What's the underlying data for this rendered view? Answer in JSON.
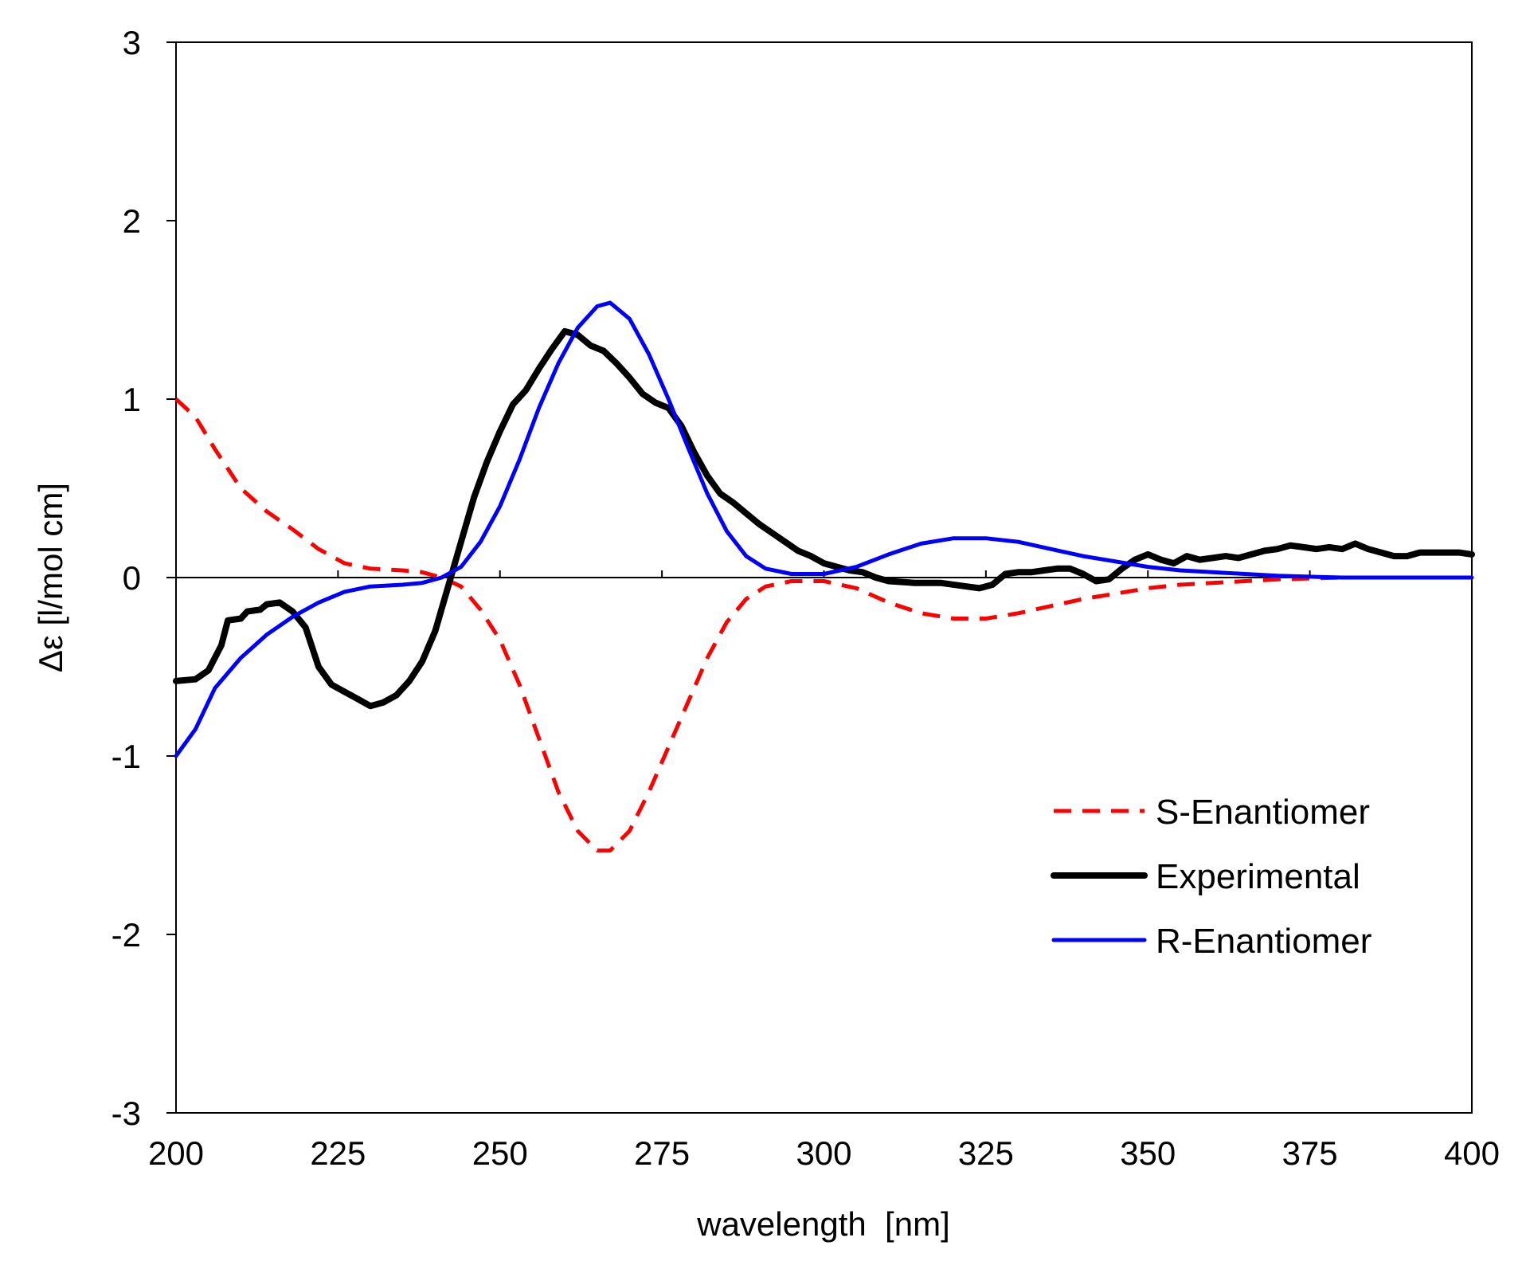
{
  "chart_data": {
    "type": "line",
    "title": "",
    "xlabel": "wavelength  [nm]",
    "ylabel": "Δε [l/mol cm]",
    "xlim": [
      200,
      400
    ],
    "ylim": [
      -3,
      3
    ],
    "x_ticks": [
      200,
      225,
      250,
      275,
      300,
      325,
      350,
      375,
      400
    ],
    "y_ticks": [
      -3,
      -2,
      -1,
      0,
      1,
      2,
      3
    ],
    "legend_position": "lower-right",
    "series": [
      {
        "name": "S-Enantiomer",
        "color": "#ff0000",
        "style": "dashed",
        "points": [
          [
            200,
            1.0
          ],
          [
            203,
            0.9
          ],
          [
            206,
            0.72
          ],
          [
            210,
            0.5
          ],
          [
            214,
            0.37
          ],
          [
            218,
            0.27
          ],
          [
            222,
            0.16
          ],
          [
            226,
            0.08
          ],
          [
            230,
            0.05
          ],
          [
            235,
            0.04
          ],
          [
            238,
            0.03
          ],
          [
            241,
            0.0
          ],
          [
            244,
            -0.05
          ],
          [
            247,
            -0.18
          ],
          [
            250,
            -0.35
          ],
          [
            253,
            -0.6
          ],
          [
            256,
            -0.9
          ],
          [
            259,
            -1.2
          ],
          [
            262,
            -1.42
          ],
          [
            265,
            -1.53
          ],
          [
            267,
            -1.53
          ],
          [
            270,
            -1.42
          ],
          [
            273,
            -1.2
          ],
          [
            276,
            -0.95
          ],
          [
            279,
            -0.7
          ],
          [
            282,
            -0.45
          ],
          [
            285,
            -0.25
          ],
          [
            288,
            -0.12
          ],
          [
            291,
            -0.05
          ],
          [
            295,
            -0.02
          ],
          [
            300,
            -0.02
          ],
          [
            305,
            -0.06
          ],
          [
            310,
            -0.14
          ],
          [
            315,
            -0.2
          ],
          [
            320,
            -0.23
          ],
          [
            325,
            -0.23
          ],
          [
            330,
            -0.2
          ],
          [
            335,
            -0.16
          ],
          [
            340,
            -0.12
          ],
          [
            345,
            -0.09
          ],
          [
            350,
            -0.06
          ],
          [
            355,
            -0.04
          ],
          [
            360,
            -0.03
          ],
          [
            365,
            -0.02
          ],
          [
            370,
            -0.01
          ],
          [
            380,
            0.0
          ],
          [
            400,
            0.0
          ]
        ]
      },
      {
        "name": "Experimental",
        "color": "#000000",
        "style": "solid-thick",
        "points": [
          [
            200,
            -0.58
          ],
          [
            203,
            -0.57
          ],
          [
            205,
            -0.52
          ],
          [
            207,
            -0.38
          ],
          [
            208,
            -0.24
          ],
          [
            210,
            -0.23
          ],
          [
            211,
            -0.19
          ],
          [
            213,
            -0.18
          ],
          [
            214,
            -0.15
          ],
          [
            216,
            -0.14
          ],
          [
            218,
            -0.19
          ],
          [
            220,
            -0.28
          ],
          [
            222,
            -0.5
          ],
          [
            224,
            -0.6
          ],
          [
            226,
            -0.64
          ],
          [
            228,
            -0.68
          ],
          [
            230,
            -0.72
          ],
          [
            232,
            -0.7
          ],
          [
            234,
            -0.66
          ],
          [
            236,
            -0.58
          ],
          [
            238,
            -0.47
          ],
          [
            240,
            -0.3
          ],
          [
            242,
            -0.05
          ],
          [
            244,
            0.2
          ],
          [
            246,
            0.45
          ],
          [
            248,
            0.65
          ],
          [
            250,
            0.82
          ],
          [
            252,
            0.97
          ],
          [
            254,
            1.05
          ],
          [
            256,
            1.17
          ],
          [
            258,
            1.28
          ],
          [
            260,
            1.38
          ],
          [
            262,
            1.36
          ],
          [
            264,
            1.3
          ],
          [
            266,
            1.27
          ],
          [
            268,
            1.2
          ],
          [
            270,
            1.12
          ],
          [
            272,
            1.03
          ],
          [
            274,
            0.98
          ],
          [
            276,
            0.95
          ],
          [
            278,
            0.85
          ],
          [
            280,
            0.7
          ],
          [
            282,
            0.57
          ],
          [
            284,
            0.47
          ],
          [
            286,
            0.42
          ],
          [
            288,
            0.36
          ],
          [
            290,
            0.3
          ],
          [
            292,
            0.25
          ],
          [
            294,
            0.2
          ],
          [
            296,
            0.15
          ],
          [
            298,
            0.12
          ],
          [
            300,
            0.08
          ],
          [
            302,
            0.06
          ],
          [
            304,
            0.04
          ],
          [
            306,
            0.03
          ],
          [
            308,
            0.0
          ],
          [
            310,
            -0.02
          ],
          [
            314,
            -0.03
          ],
          [
            318,
            -0.03
          ],
          [
            322,
            -0.05
          ],
          [
            324,
            -0.06
          ],
          [
            326,
            -0.04
          ],
          [
            328,
            0.02
          ],
          [
            330,
            0.03
          ],
          [
            332,
            0.03
          ],
          [
            334,
            0.04
          ],
          [
            336,
            0.05
          ],
          [
            338,
            0.05
          ],
          [
            340,
            0.02
          ],
          [
            342,
            -0.02
          ],
          [
            344,
            -0.01
          ],
          [
            346,
            0.05
          ],
          [
            348,
            0.1
          ],
          [
            350,
            0.13
          ],
          [
            352,
            0.1
          ],
          [
            354,
            0.08
          ],
          [
            356,
            0.12
          ],
          [
            358,
            0.1
          ],
          [
            360,
            0.11
          ],
          [
            362,
            0.12
          ],
          [
            364,
            0.11
          ],
          [
            366,
            0.13
          ],
          [
            368,
            0.15
          ],
          [
            370,
            0.16
          ],
          [
            372,
            0.18
          ],
          [
            374,
            0.17
          ],
          [
            376,
            0.16
          ],
          [
            378,
            0.17
          ],
          [
            380,
            0.16
          ],
          [
            382,
            0.19
          ],
          [
            384,
            0.16
          ],
          [
            386,
            0.14
          ],
          [
            388,
            0.12
          ],
          [
            390,
            0.12
          ],
          [
            392,
            0.14
          ],
          [
            394,
            0.14
          ],
          [
            396,
            0.14
          ],
          [
            398,
            0.14
          ],
          [
            400,
            0.13
          ]
        ]
      },
      {
        "name": "R-Enantiomer",
        "color": "#0000ff",
        "style": "solid",
        "points": [
          [
            200,
            -1.0
          ],
          [
            203,
            -0.85
          ],
          [
            206,
            -0.62
          ],
          [
            210,
            -0.45
          ],
          [
            214,
            -0.32
          ],
          [
            218,
            -0.22
          ],
          [
            222,
            -0.14
          ],
          [
            226,
            -0.08
          ],
          [
            230,
            -0.05
          ],
          [
            235,
            -0.04
          ],
          [
            238,
            -0.03
          ],
          [
            241,
            0.0
          ],
          [
            244,
            0.06
          ],
          [
            247,
            0.2
          ],
          [
            250,
            0.4
          ],
          [
            253,
            0.66
          ],
          [
            256,
            0.95
          ],
          [
            259,
            1.2
          ],
          [
            262,
            1.4
          ],
          [
            265,
            1.52
          ],
          [
            267,
            1.54
          ],
          [
            270,
            1.45
          ],
          [
            273,
            1.25
          ],
          [
            276,
            1.0
          ],
          [
            279,
            0.73
          ],
          [
            282,
            0.47
          ],
          [
            285,
            0.26
          ],
          [
            288,
            0.12
          ],
          [
            291,
            0.05
          ],
          [
            295,
            0.02
          ],
          [
            300,
            0.02
          ],
          [
            305,
            0.06
          ],
          [
            310,
            0.13
          ],
          [
            315,
            0.19
          ],
          [
            320,
            0.22
          ],
          [
            325,
            0.22
          ],
          [
            330,
            0.2
          ],
          [
            335,
            0.16
          ],
          [
            340,
            0.12
          ],
          [
            345,
            0.09
          ],
          [
            350,
            0.06
          ],
          [
            355,
            0.04
          ],
          [
            360,
            0.03
          ],
          [
            365,
            0.02
          ],
          [
            370,
            0.01
          ],
          [
            380,
            0.0
          ],
          [
            400,
            0.0
          ]
        ]
      }
    ]
  }
}
